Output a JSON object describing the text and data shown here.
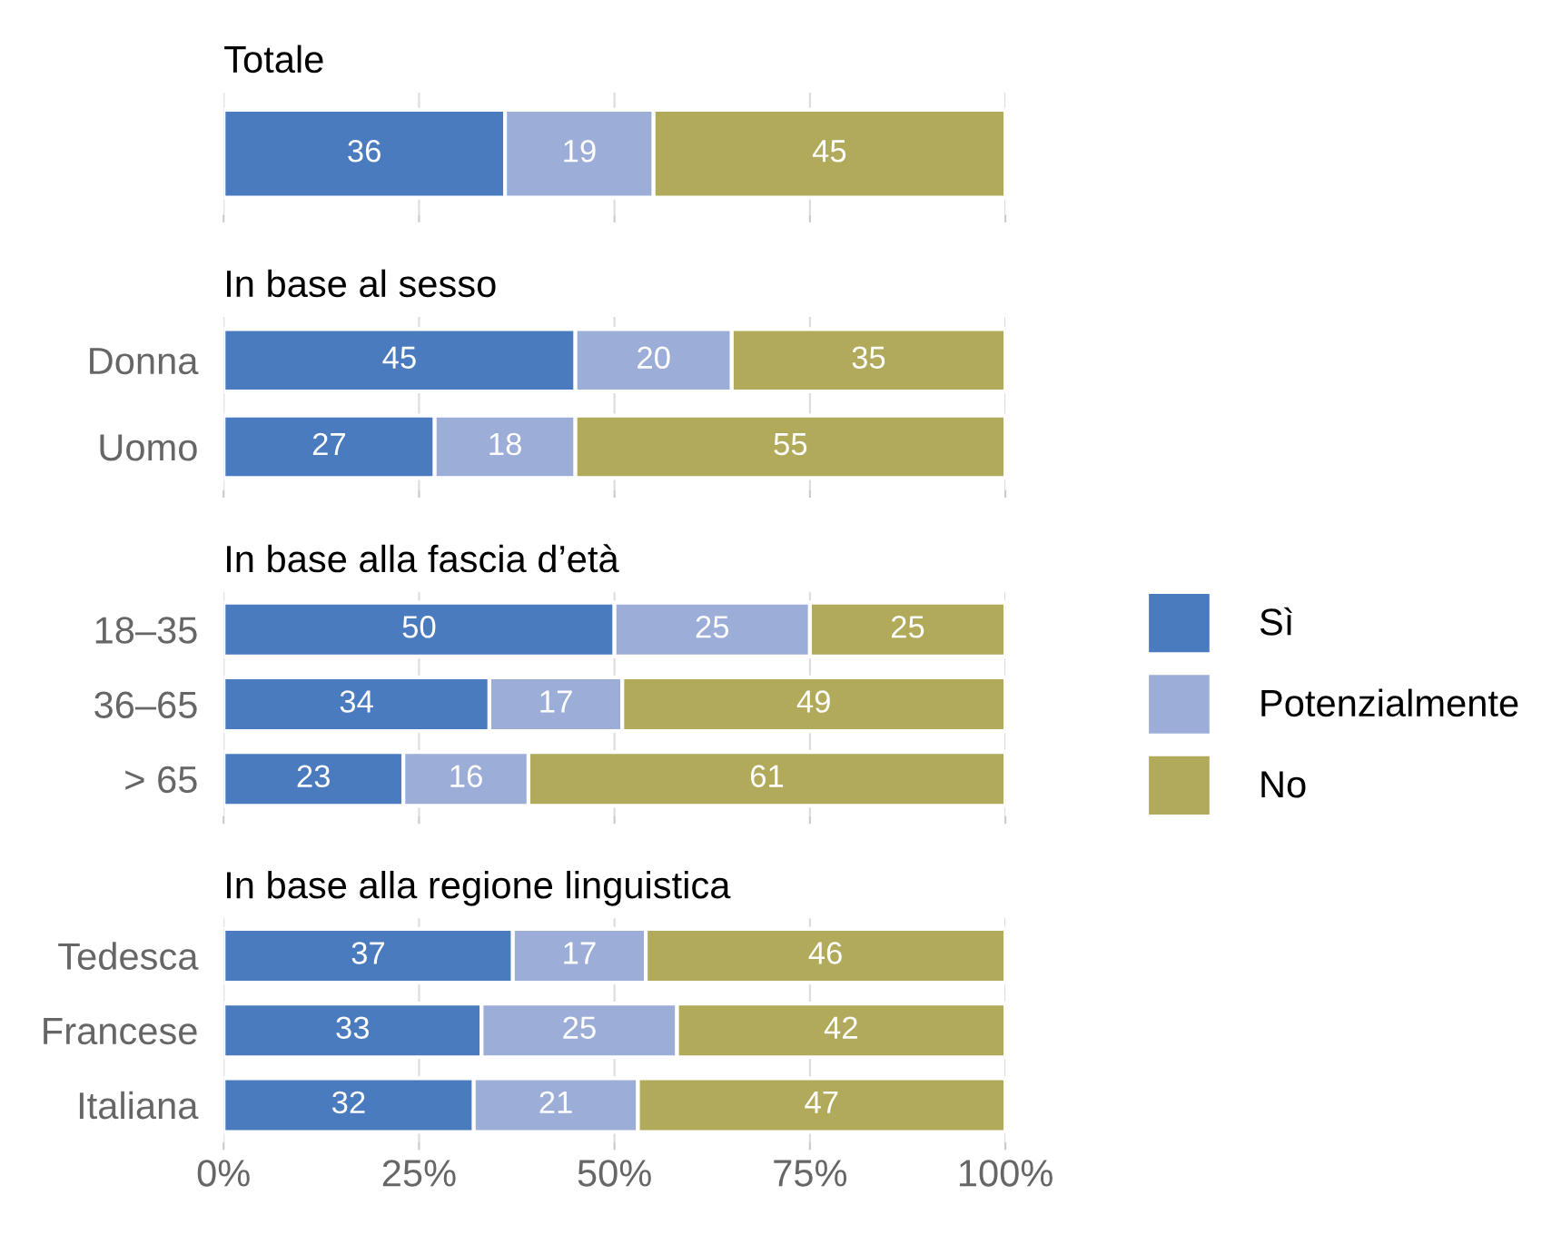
{
  "chart_data": [
    {
      "type": "bar",
      "orientation": "horizontal",
      "stacked": true,
      "title": "Totale",
      "categories": [
        null
      ],
      "series": [
        {
          "color": "#4a7bbf",
          "values": [
            36
          ]
        },
        {
          "color": "#9caed7",
          "values": [
            19
          ]
        },
        {
          "color": "#b1aa5b",
          "values": [
            45
          ]
        }
      ],
      "xlim": [
        0,
        100
      ],
      "xticks": [
        {
          "value": 0,
          "label": null
        },
        {
          "value": 25,
          "label": null
        },
        {
          "value": 50,
          "label": null
        },
        {
          "value": 75,
          "label": null
        },
        {
          "value": 100,
          "label": null
        }
      ],
      "tick_labels": "y",
      "grid": "x",
      "data_labels": true,
      "legend": false
    },
    {
      "type": "bar",
      "orientation": "horizontal",
      "stacked": true,
      "title": "In base al sesso",
      "categories": [
        "Donna",
        "Uomo"
      ],
      "series": [
        {
          "color": "#4a7bbf",
          "values": [
            45,
            27
          ]
        },
        {
          "color": "#9caed7",
          "values": [
            20,
            18
          ]
        },
        {
          "color": "#b1aa5b",
          "values": [
            35,
            55
          ]
        }
      ],
      "xlim": [
        0,
        100
      ],
      "xticks": [
        {
          "value": 0,
          "label": null
        },
        {
          "value": 25,
          "label": null
        },
        {
          "value": 50,
          "label": null
        },
        {
          "value": 75,
          "label": null
        },
        {
          "value": 100,
          "label": null
        }
      ],
      "tick_labels": "y",
      "grid": "x",
      "data_labels": true,
      "legend": false
    },
    {
      "type": "bar",
      "orientation": "horizontal",
      "stacked": true,
      "title": "In base alla fascia d’età",
      "categories": [
        "18–35",
        "36–65",
        "> 65"
      ],
      "series": [
        {
          "name": "Sì",
          "color": "#4a7bbf",
          "values": [
            50,
            34,
            23
          ]
        },
        {
          "name": "Potenzialmente",
          "color": "#9caed7",
          "values": [
            25,
            17,
            16
          ]
        },
        {
          "name": "No",
          "color": "#b1aa5b",
          "values": [
            25,
            49,
            61
          ]
        }
      ],
      "xlim": [
        0,
        100
      ],
      "xticks": [
        {
          "value": 0,
          "label": null
        },
        {
          "value": 25,
          "label": null
        },
        {
          "value": 50,
          "label": null
        },
        {
          "value": 75,
          "label": null
        },
        {
          "value": 100,
          "label": null
        }
      ],
      "tick_labels": "y",
      "grid": "x",
      "data_labels": true,
      "legend": "right"
    },
    {
      "type": "bar",
      "orientation": "horizontal",
      "stacked": true,
      "title": "In base alla regione linguistica",
      "categories": [
        "Tedesca",
        "Francese",
        "Italiana"
      ],
      "series": [
        {
          "color": "#4a7bbf",
          "values": [
            37,
            33,
            32
          ]
        },
        {
          "color": "#9caed7",
          "values": [
            17,
            25,
            21
          ]
        },
        {
          "color": "#b1aa5b",
          "values": [
            46,
            42,
            47
          ]
        }
      ],
      "xlim": [
        0,
        100
      ],
      "xticks": [
        {
          "value": 0,
          "label": "0%"
        },
        {
          "value": 25,
          "label": "25%"
        },
        {
          "value": 50,
          "label": "50%"
        },
        {
          "value": 75,
          "label": "75%"
        },
        {
          "value": 100,
          "label": "100%"
        }
      ],
      "grid": "x",
      "data_labels": true,
      "legend": false
    }
  ]
}
